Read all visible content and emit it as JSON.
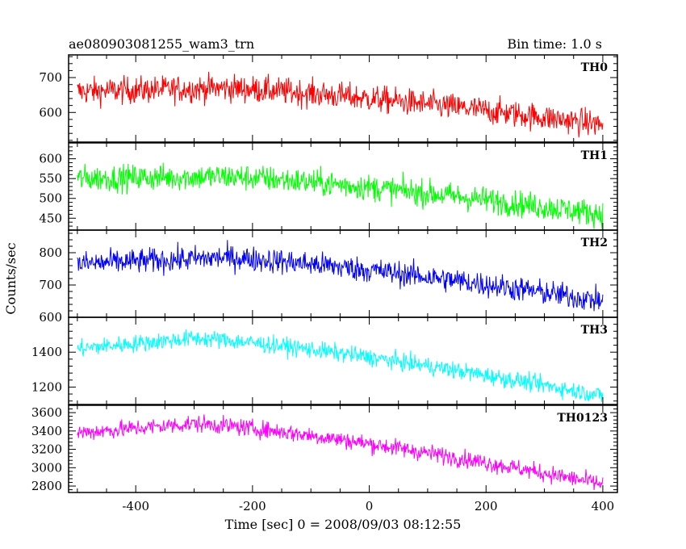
{
  "chart_data": {
    "type": "line",
    "title": "ae080903081255_wam3_trn",
    "bin_time_label": "Bin time: 1.0 s",
    "xlabel": "Time [sec] 0 = 2008/09/03 08:12:55",
    "ylabel": "Counts/sec",
    "xlim": [
      -515,
      425
    ],
    "x_ticks": [
      -400,
      -200,
      0,
      200,
      400
    ],
    "x_range_data": [
      -500,
      400
    ],
    "grid": false,
    "panels": [
      {
        "name": "TH0",
        "color": "#ff0000",
        "ylim": [
          515,
          765
        ],
        "yticks": [
          600,
          700
        ],
        "y_start": 660,
        "y_peak": 670,
        "peak_x": -250,
        "y_end": 565,
        "noise": 35
      },
      {
        "name": "TH1",
        "color": "#00ff00",
        "ylim": [
          420,
          640
        ],
        "yticks": [
          450,
          500,
          550,
          600
        ],
        "y_start": 550,
        "y_peak": 555,
        "peak_x": -250,
        "y_end": 460,
        "noise": 30
      },
      {
        "name": "TH2",
        "color": "#0000ff",
        "ylim": [
          600,
          870
        ],
        "yticks": [
          600,
          700,
          800
        ],
        "y_start": 765,
        "y_peak": 785,
        "peak_x": -250,
        "y_end": 650,
        "noise": 35
      },
      {
        "name": "TH3",
        "color": "#00ffff",
        "ylim": [
          1100,
          1600
        ],
        "yticks": [
          1200,
          1400
        ],
        "y_start": 1420,
        "y_peak": 1480,
        "peak_x": -300,
        "y_end": 1150,
        "noise": 45
      },
      {
        "name": "TH0123",
        "color": "#ff00ff",
        "ylim": [
          2730,
          3680
        ],
        "yticks": [
          2800,
          3000,
          3200,
          3400,
          3600
        ],
        "y_start": 3380,
        "y_peak": 3480,
        "peak_x": -300,
        "y_end": 2820,
        "noise": 85
      }
    ]
  }
}
